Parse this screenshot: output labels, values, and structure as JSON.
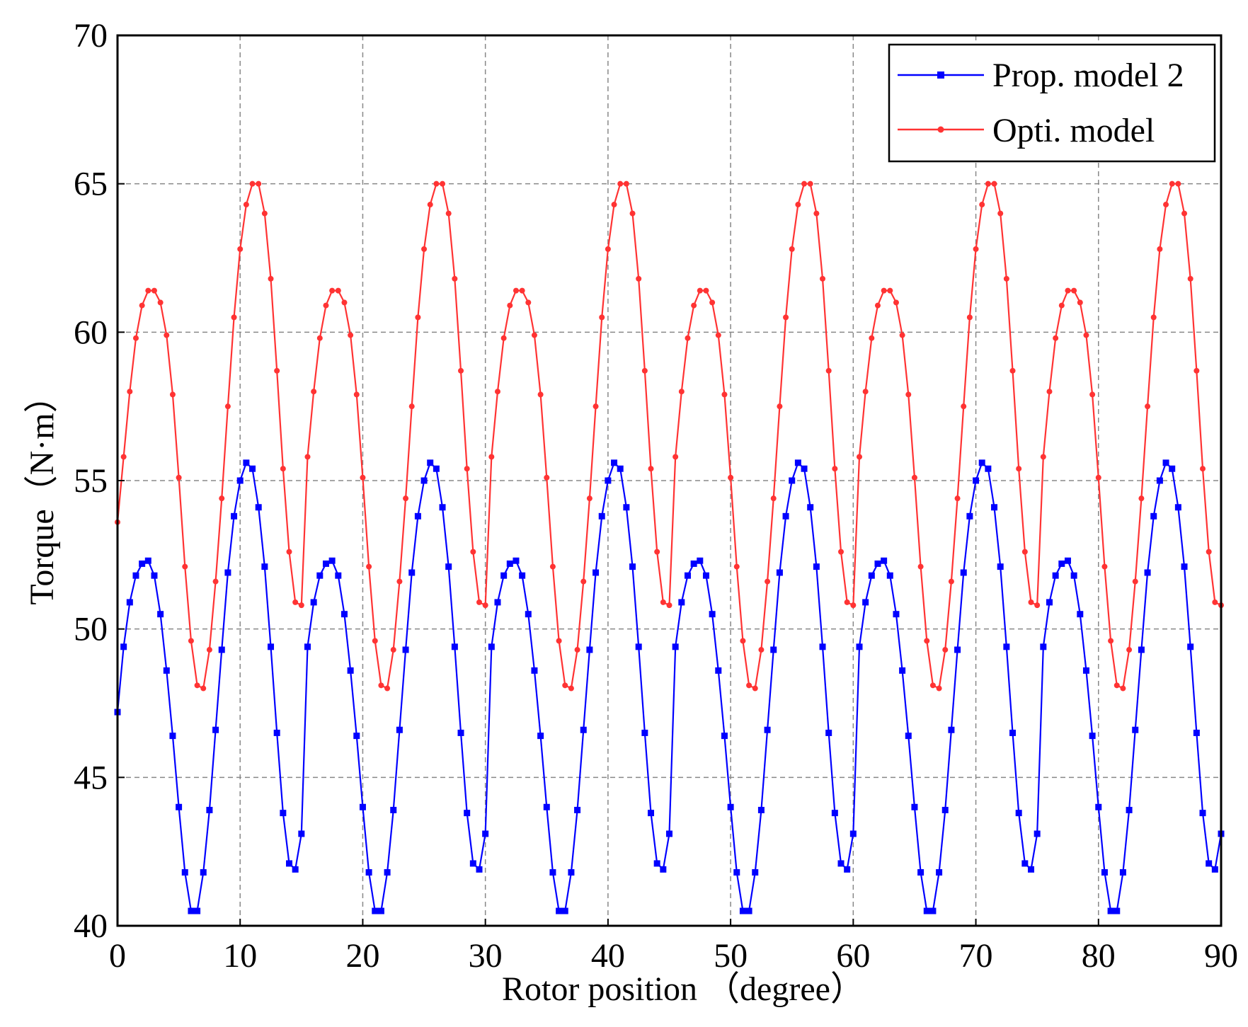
{
  "chart_data": {
    "type": "line",
    "title": "",
    "xlabel": "Rotor position （degree）",
    "ylabel": "Torque（N·m）",
    "xlim": [
      0,
      90
    ],
    "ylim": [
      40,
      70
    ],
    "xticks": [
      0,
      10,
      20,
      30,
      40,
      50,
      60,
      70,
      80,
      90
    ],
    "yticks": [
      40,
      45,
      50,
      55,
      60,
      65,
      70
    ],
    "grid": true,
    "legend_position": "top-right",
    "x": [
      0,
      0.5,
      1,
      1.5,
      2,
      2.5,
      3,
      3.5,
      4,
      4.5,
      5,
      5.5,
      6,
      6.5,
      7,
      7.5,
      8,
      8.5,
      9,
      9.5,
      10,
      10.5,
      11,
      11.5,
      12,
      12.5,
      13,
      13.5,
      14,
      14.5,
      15
    ],
    "series_period": 15,
    "series": [
      {
        "name": "Prop. model 2",
        "color": "#0000ff",
        "marker": "square",
        "values": [
          47.2,
          49.4,
          50.9,
          51.8,
          52.2,
          52.3,
          51.8,
          50.5,
          48.6,
          46.4,
          44.0,
          41.8,
          40.5,
          40.5,
          41.8,
          43.9,
          46.6,
          49.3,
          51.9,
          53.8,
          55.0,
          55.6,
          55.4,
          54.1,
          52.1,
          49.4,
          46.5,
          43.8,
          42.1,
          41.9,
          43.1
        ]
      },
      {
        "name": "Opti. model",
        "color": "#ff3333",
        "marker": "dot",
        "values": [
          53.6,
          55.8,
          58.0,
          59.8,
          60.9,
          61.4,
          61.4,
          61.0,
          59.9,
          57.9,
          55.1,
          52.1,
          49.6,
          48.1,
          48.0,
          49.3,
          51.6,
          54.4,
          57.5,
          60.5,
          62.8,
          64.3,
          65.0,
          65.0,
          64.0,
          61.8,
          58.7,
          55.4,
          52.6,
          50.9,
          50.8
        ]
      }
    ]
  }
}
